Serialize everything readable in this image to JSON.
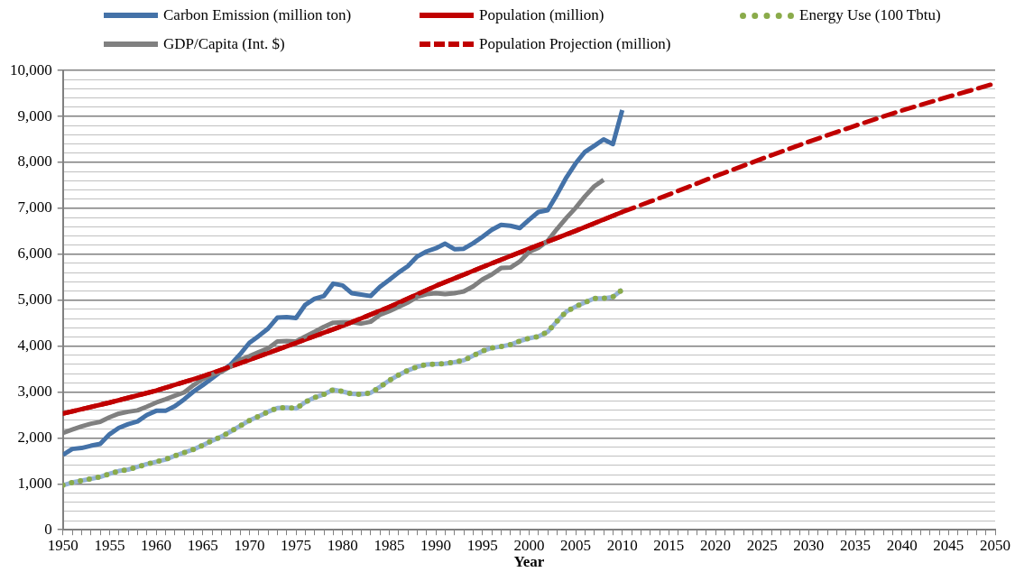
{
  "chart_data": {
    "type": "line",
    "xlabel": "Year",
    "xlim": [
      1950,
      2050
    ],
    "xticks": [
      1950,
      {
        "value": 1951,
        "label": null
      },
      {
        "value": 1952,
        "label": null
      },
      {
        "value": 1953,
        "label": null
      },
      {
        "value": 1954,
        "label": null
      },
      1955,
      {
        "value": 1956,
        "label": null
      },
      {
        "value": 1957,
        "label": null
      },
      {
        "value": 1958,
        "label": null
      },
      {
        "value": 1959,
        "label": null
      },
      1960,
      {
        "value": 1961,
        "label": null
      },
      {
        "value": 1962,
        "label": null
      },
      {
        "value": 1963,
        "label": null
      },
      {
        "value": 1964,
        "label": null
      },
      1965,
      {
        "value": 1966,
        "label": null
      },
      {
        "value": 1967,
        "label": null
      },
      {
        "value": 1968,
        "label": null
      },
      {
        "value": 1969,
        "label": null
      },
      1970,
      {
        "value": 1971,
        "label": null
      },
      {
        "value": 1972,
        "label": null
      },
      {
        "value": 1973,
        "label": null
      },
      {
        "value": 1974,
        "label": null
      },
      1975,
      {
        "value": 1976,
        "label": null
      },
      {
        "value": 1977,
        "label": null
      },
      {
        "value": 1978,
        "label": null
      },
      {
        "value": 1979,
        "label": null
      },
      1980,
      {
        "value": 1981,
        "label": null
      },
      {
        "value": 1982,
        "label": null
      },
      {
        "value": 1983,
        "label": null
      },
      {
        "value": 1984,
        "label": null
      },
      1985,
      {
        "value": 1986,
        "label": null
      },
      {
        "value": 1987,
        "label": null
      },
      {
        "value": 1988,
        "label": null
      },
      {
        "value": 1989,
        "label": null
      },
      1990,
      {
        "value": 1991,
        "label": null
      },
      {
        "value": 1992,
        "label": null
      },
      {
        "value": 1993,
        "label": null
      },
      {
        "value": 1994,
        "label": null
      },
      1995,
      {
        "value": 1996,
        "label": null
      },
      {
        "value": 1997,
        "label": null
      },
      {
        "value": 1998,
        "label": null
      },
      {
        "value": 1999,
        "label": null
      },
      2000,
      {
        "value": 2001,
        "label": null
      },
      {
        "value": 2002,
        "label": null
      },
      {
        "value": 2003,
        "label": null
      },
      {
        "value": 2004,
        "label": null
      },
      2005,
      {
        "value": 2006,
        "label": null
      },
      {
        "value": 2007,
        "label": null
      },
      {
        "value": 2008,
        "label": null
      },
      {
        "value": 2009,
        "label": null
      },
      2010,
      {
        "value": 2011,
        "label": null
      },
      {
        "value": 2012,
        "label": null
      },
      {
        "value": 2013,
        "label": null
      },
      {
        "value": 2014,
        "label": null
      },
      2015,
      {
        "value": 2016,
        "label": null
      },
      {
        "value": 2017,
        "label": null
      },
      {
        "value": 2018,
        "label": null
      },
      {
        "value": 2019,
        "label": null
      },
      2020,
      {
        "value": 2021,
        "label": null
      },
      {
        "value": 2022,
        "label": null
      },
      {
        "value": 2023,
        "label": null
      },
      {
        "value": 2024,
        "label": null
      },
      2025,
      {
        "value": 2026,
        "label": null
      },
      {
        "value": 2027,
        "label": null
      },
      {
        "value": 2028,
        "label": null
      },
      {
        "value": 2029,
        "label": null
      },
      2030,
      {
        "value": 2031,
        "label": null
      },
      {
        "value": 2032,
        "label": null
      },
      {
        "value": 2033,
        "label": null
      },
      {
        "value": 2034,
        "label": null
      },
      2035,
      {
        "value": 2036,
        "label": null
      },
      {
        "value": 2037,
        "label": null
      },
      {
        "value": 2038,
        "label": null
      },
      {
        "value": 2039,
        "label": null
      },
      2040,
      {
        "value": 2041,
        "label": null
      },
      {
        "value": 2042,
        "label": null
      },
      {
        "value": 2043,
        "label": null
      },
      {
        "value": 2044,
        "label": null
      },
      2045,
      {
        "value": 2046,
        "label": null
      },
      {
        "value": 2047,
        "label": null
      },
      {
        "value": 2048,
        "label": null
      },
      {
        "value": 2049,
        "label": null
      },
      2050
    ],
    "ylim": [
      0,
      10000
    ],
    "yticks": [
      {
        "value": 0,
        "label": "0"
      },
      {
        "value": 200,
        "label": null
      },
      {
        "value": 400,
        "label": null
      },
      {
        "value": 600,
        "label": null
      },
      {
        "value": 800,
        "label": null
      },
      {
        "value": 1000,
        "label": "1,000"
      },
      {
        "value": 1200,
        "label": null
      },
      {
        "value": 1400,
        "label": null
      },
      {
        "value": 1600,
        "label": null
      },
      {
        "value": 1800,
        "label": null
      },
      {
        "value": 2000,
        "label": "2,000"
      },
      {
        "value": 2200,
        "label": null
      },
      {
        "value": 2400,
        "label": null
      },
      {
        "value": 2600,
        "label": null
      },
      {
        "value": 2800,
        "label": null
      },
      {
        "value": 3000,
        "label": "3,000"
      },
      {
        "value": 3200,
        "label": null
      },
      {
        "value": 3400,
        "label": null
      },
      {
        "value": 3600,
        "label": null
      },
      {
        "value": 3800,
        "label": null
      },
      {
        "value": 4000,
        "label": "4,000"
      },
      {
        "value": 4200,
        "label": null
      },
      {
        "value": 4400,
        "label": null
      },
      {
        "value": 4600,
        "label": null
      },
      {
        "value": 4800,
        "label": null
      },
      {
        "value": 5000,
        "label": "5,000"
      },
      {
        "value": 5200,
        "label": null
      },
      {
        "value": 5400,
        "label": null
      },
      {
        "value": 5600,
        "label": null
      },
      {
        "value": 5800,
        "label": null
      },
      {
        "value": 6000,
        "label": "6,000"
      },
      {
        "value": 6200,
        "label": null
      },
      {
        "value": 6400,
        "label": null
      },
      {
        "value": 6600,
        "label": null
      },
      {
        "value": 6800,
        "label": null
      },
      {
        "value": 7000,
        "label": "7,000"
      },
      {
        "value": 7200,
        "label": null
      },
      {
        "value": 7400,
        "label": null
      },
      {
        "value": 7600,
        "label": null
      },
      {
        "value": 7800,
        "label": null
      },
      {
        "value": 8000,
        "label": "8,000"
      },
      {
        "value": 8200,
        "label": null
      },
      {
        "value": 8400,
        "label": null
      },
      {
        "value": 8600,
        "label": null
      },
      {
        "value": 8800,
        "label": null
      },
      {
        "value": 9000,
        "label": "9,000"
      },
      {
        "value": 9200,
        "label": null
      },
      {
        "value": 9400,
        "label": null
      },
      {
        "value": 9600,
        "label": null
      },
      {
        "value": 9800,
        "label": null
      },
      {
        "value": 10000,
        "label": "10,000"
      }
    ],
    "grid": "y",
    "legend": "top",
    "marker": "none",
    "x": [
      1950,
      1951,
      1952,
      1953,
      1954,
      1955,
      1956,
      1957,
      1958,
      1959,
      1960,
      1961,
      1962,
      1963,
      1964,
      1965,
      1966,
      1967,
      1968,
      1969,
      1970,
      1971,
      1972,
      1973,
      1974,
      1975,
      1976,
      1977,
      1978,
      1979,
      1980,
      1981,
      1982,
      1983,
      1984,
      1985,
      1986,
      1987,
      1988,
      1989,
      1990,
      1991,
      1992,
      1993,
      1994,
      1995,
      1996,
      1997,
      1998,
      1999,
      2000,
      2001,
      2002,
      2003,
      2004,
      2005,
      2006,
      2007,
      2008,
      2009,
      2010
    ],
    "series": [
      {
        "name": "Carbon Emission (million ton)",
        "color": "#4472a8",
        "line_style": "solid",
        "values": [
          1630,
          1760,
          1780,
          1830,
          1870,
          2080,
          2220,
          2300,
          2360,
          2500,
          2590,
          2590,
          2690,
          2840,
          3010,
          3150,
          3300,
          3450,
          3600,
          3820,
          4070,
          4220,
          4380,
          4620,
          4630,
          4610,
          4900,
          5030,
          5090,
          5360,
          5320,
          5150,
          5120,
          5090,
          5290,
          5440,
          5600,
          5740,
          5950,
          6060,
          6130,
          6230,
          6110,
          6120,
          6240,
          6380,
          6530,
          6640,
          6620,
          6570,
          6750,
          6920,
          6960,
          7300,
          7670,
          7980,
          8230,
          8360,
          8500,
          8400,
          9140
        ]
      },
      {
        "name": "Population (million)",
        "color": "#c00000",
        "line_style": "solid",
        "x": [
          1950,
          1955,
          1960,
          1965,
          1970,
          1975,
          1980,
          1985,
          1990,
          1995,
          2000,
          2005,
          2010
        ],
        "values": [
          2530,
          2770,
          3030,
          3340,
          3700,
          4070,
          4440,
          4850,
          5310,
          5720,
          6120,
          6510,
          6920
        ]
      },
      {
        "color": "#95b3d7",
        "line_style": "solid",
        "values": [
          970,
          1030,
          1070,
          1110,
          1150,
          1220,
          1280,
          1310,
          1370,
          1430,
          1480,
          1530,
          1610,
          1680,
          1750,
          1840,
          1940,
          2030,
          2140,
          2260,
          2380,
          2470,
          2570,
          2650,
          2660,
          2640,
          2780,
          2880,
          2950,
          3050,
          3010,
          2960,
          2950,
          2980,
          3110,
          3250,
          3370,
          3470,
          3550,
          3600,
          3610,
          3620,
          3650,
          3690,
          3790,
          3890,
          3960,
          3990,
          4030,
          4110,
          4170,
          4210,
          4310,
          4540,
          4750,
          4860,
          4950,
          5040,
          5040,
          5070,
          5230
        ]
      },
      {
        "name": "Energy Use (100 Tbtu)",
        "color": "#8aab4a",
        "line_style": "dotted",
        "values": [
          970,
          1030,
          1070,
          1110,
          1150,
          1220,
          1280,
          1310,
          1370,
          1430,
          1480,
          1530,
          1610,
          1680,
          1750,
          1840,
          1940,
          2030,
          2140,
          2260,
          2380,
          2470,
          2570,
          2650,
          2660,
          2640,
          2780,
          2880,
          2950,
          3050,
          3010,
          2960,
          2950,
          2980,
          3110,
          3250,
          3370,
          3470,
          3550,
          3600,
          3610,
          3620,
          3650,
          3690,
          3790,
          3890,
          3960,
          3990,
          4030,
          4110,
          4170,
          4210,
          4310,
          4540,
          4750,
          4860,
          4950,
          5040,
          5040,
          5070,
          5230
        ]
      },
      {
        "name": "GDP/Capita (Int. $)",
        "color": "#808080",
        "line_style": "solid",
        "x": [
          1950,
          1951,
          1952,
          1953,
          1954,
          1955,
          1956,
          1957,
          1958,
          1959,
          1960,
          1961,
          1962,
          1963,
          1964,
          1965,
          1966,
          1967,
          1968,
          1969,
          1970,
          1971,
          1972,
          1973,
          1974,
          1975,
          1976,
          1977,
          1978,
          1979,
          1980,
          1981,
          1982,
          1983,
          1984,
          1985,
          1986,
          1987,
          1988,
          1989,
          1990,
          1991,
          1992,
          1993,
          1994,
          1995,
          1996,
          1997,
          1998,
          1999,
          2000,
          2001,
          2002,
          2003,
          2004,
          2005,
          2006,
          2007,
          2008
        ],
        "values": [
          2110,
          2180,
          2250,
          2310,
          2350,
          2450,
          2530,
          2570,
          2600,
          2680,
          2770,
          2840,
          2920,
          2990,
          3150,
          3280,
          3380,
          3440,
          3560,
          3700,
          3780,
          3870,
          3950,
          4100,
          4110,
          4100,
          4210,
          4310,
          4420,
          4510,
          4520,
          4520,
          4490,
          4530,
          4680,
          4760,
          4850,
          4950,
          5070,
          5130,
          5150,
          5130,
          5150,
          5190,
          5300,
          5450,
          5560,
          5700,
          5710,
          5840,
          6050,
          6140,
          6290,
          6550,
          6790,
          7010,
          7260,
          7480,
          7620
        ]
      },
      {
        "name": "Population Projection (million)",
        "color": "#c00000",
        "line_style": "dashed",
        "x": [
          1950,
          1955,
          1960,
          1965,
          1970,
          1975,
          1980,
          1985,
          1990,
          1995,
          2000,
          2005,
          2010,
          2015,
          2020,
          2025,
          2030,
          2035,
          2040,
          2045,
          2050
        ],
        "values": [
          2530,
          2770,
          3030,
          3340,
          3700,
          4070,
          4440,
          4850,
          5310,
          5720,
          6120,
          6510,
          6920,
          7300,
          7700,
          8080,
          8450,
          8800,
          9130,
          9430,
          9720
        ]
      }
    ]
  }
}
